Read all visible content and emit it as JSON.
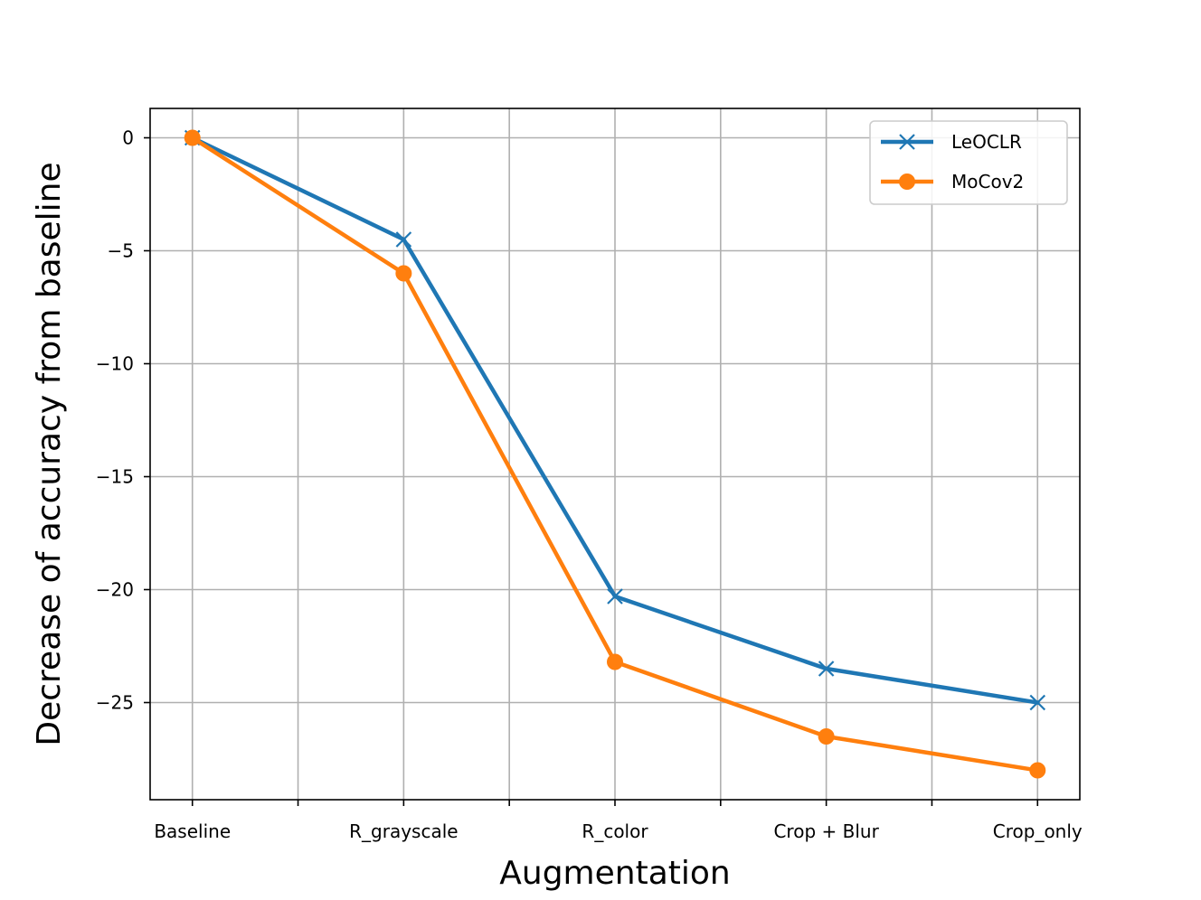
{
  "chart_data": {
    "type": "line",
    "title": "",
    "xlabel": "Augmentation",
    "ylabel": "Decrease of accuracy from baseline",
    "categories": [
      "Baseline",
      "R_grayscale",
      "R_color",
      "Crop + Blur",
      "Crop_only"
    ],
    "ylim": [
      -29.3,
      1.3
    ],
    "yticks": [
      0,
      -5,
      -10,
      -15,
      -20,
      -25
    ],
    "ytick_labels": [
      "0",
      "−5",
      "−10",
      "−15",
      "−20",
      "−25"
    ],
    "grid": true,
    "legend_position": "upper-right",
    "series": [
      {
        "name": "LeOCLR",
        "color": "#1f77b4",
        "marker": "x",
        "values": [
          0,
          -4.5,
          -20.3,
          -23.5,
          -25.0
        ]
      },
      {
        "name": "MoCov2",
        "color": "#ff7f0e",
        "marker": "o",
        "values": [
          0,
          -6.0,
          -23.2,
          -26.5,
          -28.0
        ]
      }
    ]
  }
}
